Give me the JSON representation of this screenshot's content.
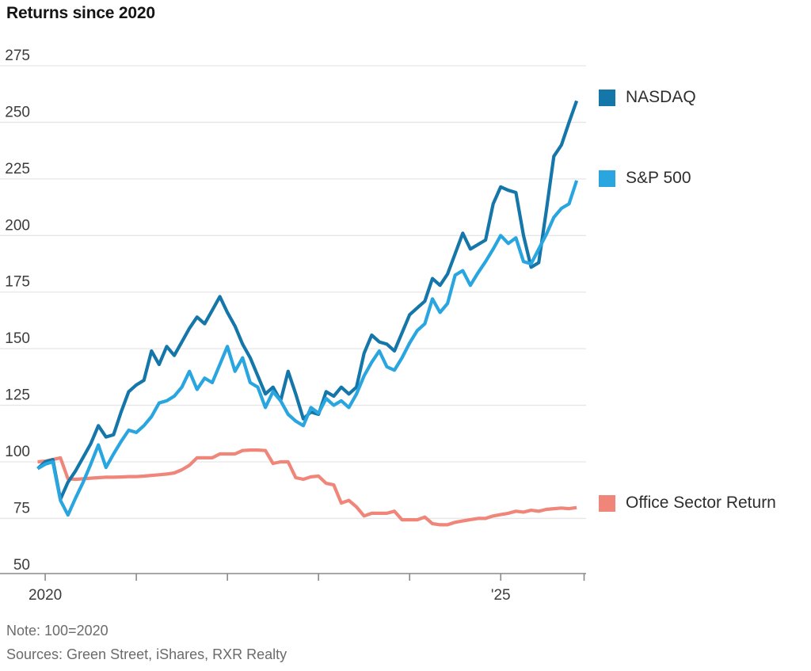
{
  "title": "Returns since 2020",
  "note": "Note: 100=2020",
  "sources": "Sources: Green Street, iShares, RXR Realty",
  "legend": [
    {
      "label": "NASDAQ",
      "color": "#1577a9"
    },
    {
      "label": "S&P 500",
      "color": "#29a5e0"
    },
    {
      "label": "Office Sector Return",
      "color": "#f0867a"
    }
  ],
  "chart_data": {
    "type": "line",
    "title": "Returns since 2020",
    "x_start": "Dec 2019",
    "x_interval": "monthly",
    "x_end": "Nov 2025",
    "xlabel": "",
    "ylabel": "",
    "ylim": [
      50,
      285
    ],
    "y_ticks": [
      50,
      75,
      100,
      125,
      150,
      175,
      200,
      225,
      250,
      275
    ],
    "x_tick_labels": [
      {
        "label": "2020",
        "year_index": 0
      },
      {
        "label": "'25",
        "year_index": 5
      }
    ],
    "grid": "horizontal",
    "legend_position": "right",
    "note": "100=2020",
    "series": [
      {
        "name": "Office Sector Return",
        "color": "#f0867a",
        "values": [
          100,
          100.3,
          101,
          101.8,
          92.5,
          92.3,
          92.5,
          92.8,
          93,
          93.2,
          93.2,
          93.3,
          93.5,
          93.5,
          93.7,
          94,
          94.3,
          94.6,
          95.1,
          96.5,
          98.5,
          101.8,
          101.8,
          101.8,
          103.5,
          103.5,
          103.5,
          105,
          105.2,
          105.2,
          105,
          99.3,
          100,
          100,
          93,
          92.3,
          93.4,
          93.7,
          90.5,
          89.8,
          81.8,
          83,
          80.1,
          76.1,
          77.3,
          77.3,
          77.3,
          78.2,
          74.4,
          74.4,
          74.4,
          75.6,
          72.7,
          72.2,
          72.2,
          73.3,
          73.9,
          74.5,
          75,
          75,
          76.1,
          76.7,
          77.3,
          78.2,
          77.8,
          78.6,
          78.2,
          79,
          79.3,
          79.6,
          79.3,
          79.8
        ]
      },
      {
        "name": "NASDAQ",
        "color": "#1577a9",
        "values": [
          97,
          100,
          101,
          83.5,
          91,
          96,
          102,
          108,
          116,
          111,
          112,
          122,
          131,
          134,
          136,
          149,
          143,
          151,
          147,
          153,
          159,
          164,
          161,
          167,
          173,
          166,
          160,
          152,
          146,
          138,
          130,
          133,
          127,
          140,
          130,
          119,
          122,
          121,
          131,
          129,
          133,
          130,
          133,
          148,
          156,
          153,
          152,
          149,
          157,
          165,
          168,
          171,
          181,
          178,
          183,
          192,
          201,
          194,
          196,
          198,
          214,
          221.5,
          220,
          219,
          200,
          186,
          188,
          211,
          235,
          240,
          250,
          259.5
        ]
      },
      {
        "name": "S&P 500",
        "color": "#29a5e0",
        "values": [
          97,
          99,
          100,
          83,
          76.5,
          84,
          91,
          99,
          107.5,
          97.5,
          103.5,
          109,
          114,
          113,
          116,
          120,
          126,
          127,
          129,
          133,
          140,
          132,
          137,
          135,
          143,
          151,
          140,
          146,
          135,
          133,
          124,
          131,
          127,
          121,
          118,
          116,
          124,
          121.5,
          128,
          125,
          127,
          124,
          130,
          138,
          144,
          149,
          142,
          140.5,
          146,
          152.5,
          158,
          161,
          172,
          166,
          170,
          182.5,
          184.5,
          178,
          183.5,
          188.5,
          194,
          200,
          196.5,
          199,
          188.5,
          187.5,
          194,
          200.5,
          208,
          212,
          214,
          224.3
        ]
      }
    ],
    "colors": {
      "grid": "#e6e6e6",
      "axis": "#8a8a8a",
      "tick_label": "#3c3c3c"
    }
  }
}
